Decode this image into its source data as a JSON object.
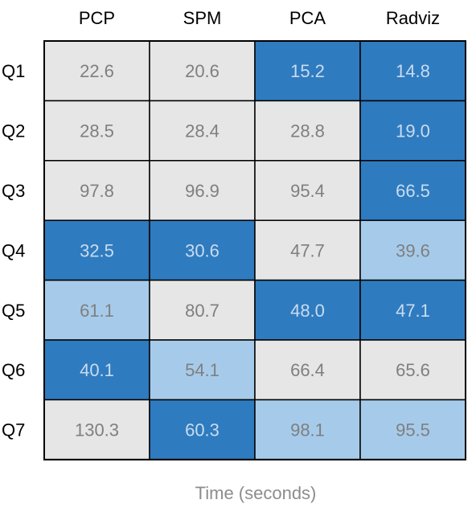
{
  "colors": {
    "low": "#2f7bbf",
    "mid": "#a6cbea",
    "high": "#e6e6e6",
    "text_on_dark": "#c8dcf0",
    "text_on_light": "#7f7f7f",
    "grid_line": "#000000"
  },
  "chart_data": {
    "type": "table",
    "title": "",
    "xlabel": "Time (seconds)",
    "ylabel": "",
    "columns": [
      "PCP",
      "SPM",
      "PCA",
      "Radviz"
    ],
    "rows": [
      "Q1",
      "Q2",
      "Q3",
      "Q4",
      "Q5",
      "Q6",
      "Q7"
    ],
    "values": [
      [
        22.6,
        20.6,
        15.2,
        14.8
      ],
      [
        28.5,
        28.4,
        28.8,
        19.0
      ],
      [
        97.8,
        96.9,
        95.4,
        66.5
      ],
      [
        32.5,
        30.6,
        47.7,
        39.6
      ],
      [
        61.1,
        80.7,
        48.0,
        47.1
      ],
      [
        40.1,
        54.1,
        66.4,
        65.6
      ],
      [
        130.3,
        60.3,
        98.1,
        95.5
      ]
    ],
    "value_labels": [
      [
        "22.6",
        "20.6",
        "15.2",
        "14.8"
      ],
      [
        "28.5",
        "28.4",
        "28.8",
        "19.0"
      ],
      [
        "97.8",
        "96.9",
        "95.4",
        "66.5"
      ],
      [
        "32.5",
        "30.6",
        "47.7",
        "39.6"
      ],
      [
        "61.1",
        "80.7",
        "48.0",
        "47.1"
      ],
      [
        "40.1",
        "54.1",
        "66.4",
        "65.6"
      ],
      [
        "130.3",
        "60.3",
        "98.1",
        "95.5"
      ]
    ],
    "categories": [
      [
        "high",
        "high",
        "low",
        "low"
      ],
      [
        "high",
        "high",
        "high",
        "low"
      ],
      [
        "high",
        "high",
        "high",
        "low"
      ],
      [
        "low",
        "low",
        "high",
        "mid"
      ],
      [
        "mid",
        "high",
        "low",
        "low"
      ],
      [
        "low",
        "mid",
        "high",
        "high"
      ],
      [
        "high",
        "low",
        "mid",
        "mid"
      ]
    ],
    "grid": true,
    "legend": "none"
  }
}
